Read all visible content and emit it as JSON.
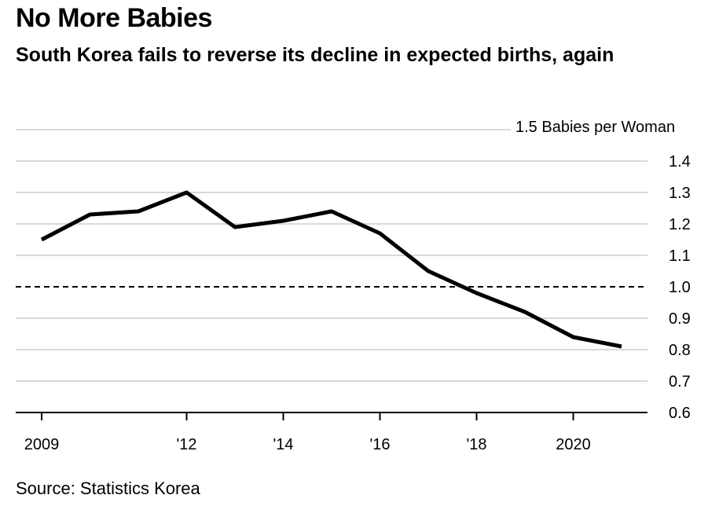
{
  "header": {
    "title": "No More Babies",
    "subtitle": "South Korea fails to reverse its decline in expected births, again"
  },
  "footer": {
    "source": "Source: Statistics Korea"
  },
  "chart_data": {
    "type": "line",
    "x": [
      2009,
      2010,
      2011,
      2012,
      2013,
      2014,
      2015,
      2016,
      2017,
      2018,
      2019,
      2020,
      2021
    ],
    "series": [
      {
        "values": [
          1.15,
          1.23,
          1.24,
          1.3,
          1.19,
          1.21,
          1.24,
          1.17,
          1.05,
          0.98,
          0.92,
          0.84,
          0.81
        ]
      }
    ],
    "ylim": [
      0.6,
      1.5
    ],
    "yticks": [
      "0.6",
      "0.7",
      "0.8",
      "0.9",
      "1.0",
      "1.1",
      "1.2",
      "1.3",
      "1.4"
    ],
    "y_unit_label": "1.5 Babies per Woman",
    "xticks": [
      {
        "value": 2009,
        "label": "2009"
      },
      {
        "value": 2012,
        "label": "'12"
      },
      {
        "value": 2014,
        "label": "'14"
      },
      {
        "value": 2016,
        "label": "'16"
      },
      {
        "value": 2018,
        "label": "'18"
      },
      {
        "value": 2020,
        "label": "2020"
      }
    ],
    "reference_line": {
      "value": 1.0,
      "style": "dashed"
    },
    "grid": true,
    "colors": {
      "line": "#000000",
      "grid": "#d9d9d9"
    }
  }
}
